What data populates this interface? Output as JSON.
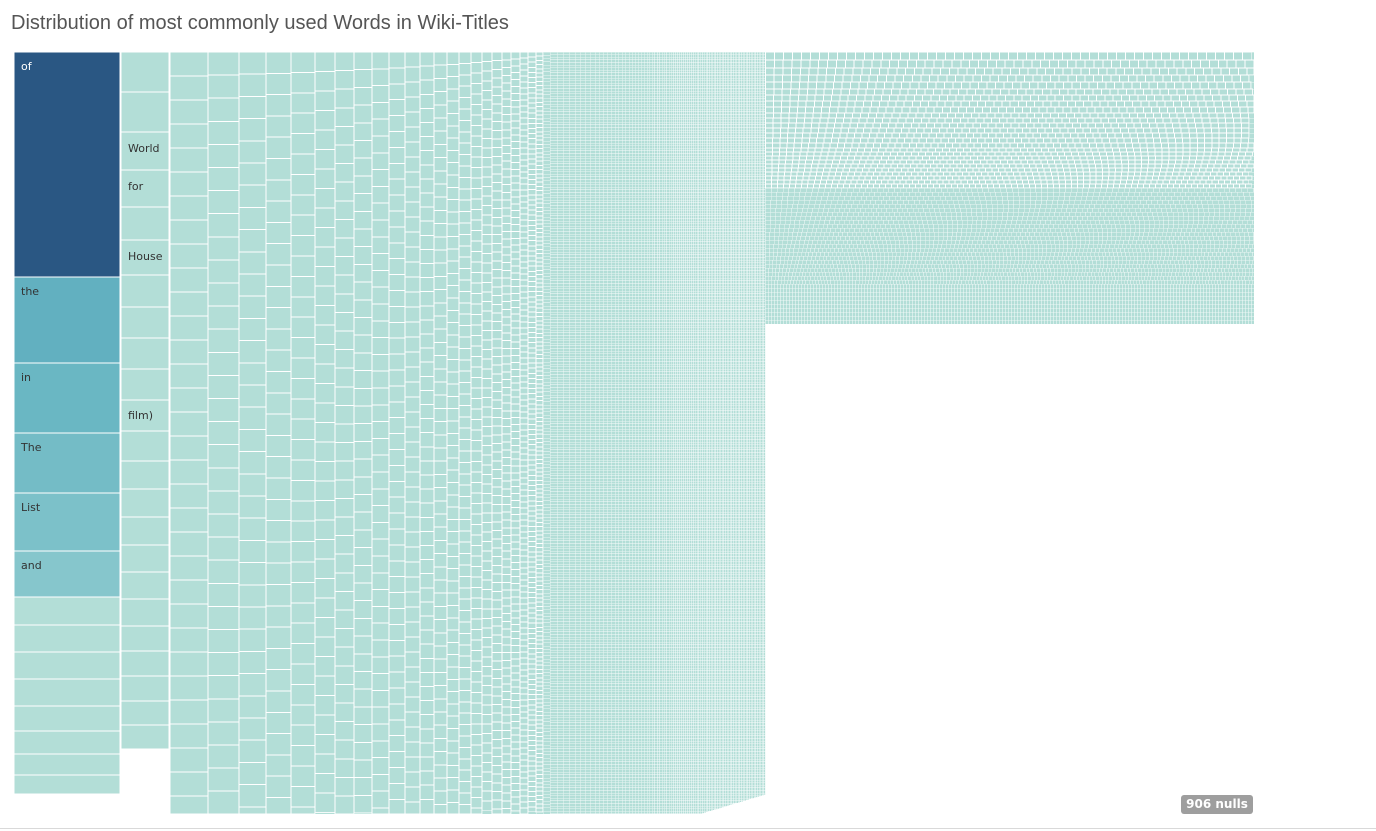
{
  "title": "Distribution of most commonly used Words in Wiki-Titles",
  "null_indicator": "906 nulls",
  "chart_data": {
    "type": "treemap",
    "title": "Distribution of most commonly used Words in Wiki-Titles",
    "labeled_tiles": [
      {
        "word": "of",
        "color": "#2a5783"
      },
      {
        "word": "the",
        "color": "#62b0c0"
      },
      {
        "word": "in",
        "color": "#6ab7c3"
      },
      {
        "word": "The",
        "color": "#74bcc6"
      },
      {
        "word": "List",
        "color": "#7cc1c9"
      },
      {
        "word": "and",
        "color": "#86c6cc"
      },
      {
        "word": "World",
        "color": "#b3ded7"
      },
      {
        "word": "for",
        "color": "#b3ded7"
      },
      {
        "word": "House",
        "color": "#b3ded7"
      },
      {
        "word": "film)",
        "color": "#b3ded7"
      }
    ],
    "base_color": "#b3ded7",
    "legend": "none"
  }
}
